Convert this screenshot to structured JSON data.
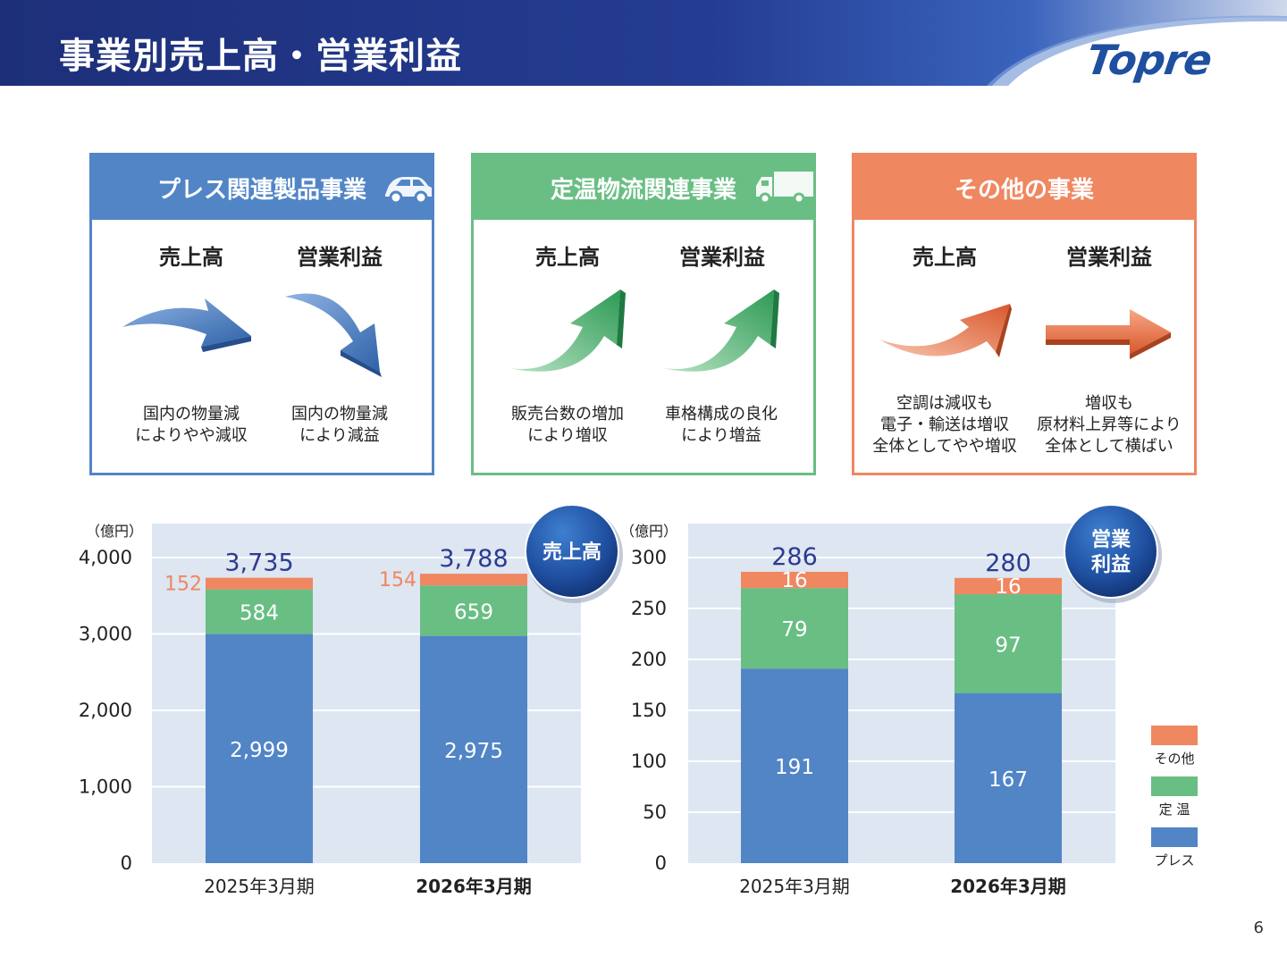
{
  "page": {
    "title": "事業別売上高・営業利益",
    "logo_text": "Topre",
    "page_number": "6"
  },
  "colors": {
    "press": "#5185c6",
    "teion": "#69be84",
    "other": "#ef8761",
    "header_dark": "#1d2f79",
    "chart_bg": "#dde6f1",
    "total_label": "#2c3b8f"
  },
  "segments": [
    {
      "title": "プレス関連製品事業",
      "icon": "car-icon",
      "color": "#5185c6",
      "sales_label": "売上高",
      "profit_label": "営業利益",
      "sales_arrow": "down-curve-arrow",
      "profit_arrow": "down-arrow",
      "sales_note": "国内の物量減\nによりやや減収",
      "profit_note": "国内の物量減\nにより減益"
    },
    {
      "title": "定温物流関連事業",
      "icon": "truck-icon",
      "color": "#69be84",
      "sales_label": "売上高",
      "profit_label": "営業利益",
      "sales_arrow": "up-arrow",
      "profit_arrow": "up-arrow",
      "sales_note": "販売台数の増加\nにより増収",
      "profit_note": "車格構成の良化\nにより増益"
    },
    {
      "title": "その他の事業",
      "icon": "",
      "color": "#ef8761",
      "sales_label": "売上高",
      "profit_label": "営業利益",
      "sales_arrow": "slight-up-arrow",
      "profit_arrow": "flat-arrow",
      "sales_note": "空調は減収も\n電子・輸送は増収\n全体としてやや増収",
      "profit_note": "増収も\n原材料上昇等により\n全体として横ばい"
    }
  ],
  "chart_data": [
    {
      "type": "bar",
      "stacked": true,
      "badge": "売上高",
      "unit_label": "（億円）",
      "categories": [
        "2025年3月期",
        "2026年3月期"
      ],
      "series": [
        {
          "name": "プレス",
          "values": [
            2999,
            2975
          ],
          "labels": [
            "2,999",
            "2,975"
          ]
        },
        {
          "name": "定 温",
          "values": [
            584,
            659
          ],
          "labels": [
            "584",
            "659"
          ]
        },
        {
          "name": "その他",
          "values": [
            152,
            154
          ],
          "labels": [
            "152",
            "154"
          ]
        }
      ],
      "totals": [
        "3,735",
        "3,788"
      ],
      "ylim": [
        0,
        4000
      ],
      "yticks": [
        "0",
        "1,000",
        "2,000",
        "3,000",
        "4,000"
      ],
      "grid": true
    },
    {
      "type": "bar",
      "stacked": true,
      "badge": "営業\n利益",
      "unit_label": "（億円）",
      "categories": [
        "2025年3月期",
        "2026年3月期"
      ],
      "series": [
        {
          "name": "プレス",
          "values": [
            191,
            167
          ],
          "labels": [
            "191",
            "167"
          ]
        },
        {
          "name": "定 温",
          "values": [
            79,
            97
          ],
          "labels": [
            "79",
            "97"
          ]
        },
        {
          "name": "その他",
          "values": [
            16,
            16
          ],
          "labels": [
            "16",
            "16"
          ]
        }
      ],
      "totals": [
        "286",
        "280"
      ],
      "ylim": [
        0,
        300
      ],
      "yticks": [
        "0",
        "50",
        "100",
        "150",
        "200",
        "250",
        "300"
      ],
      "grid": true,
      "legend": {
        "placement": "right",
        "items": [
          "その他",
          "定 温",
          "プレス"
        ]
      }
    }
  ]
}
